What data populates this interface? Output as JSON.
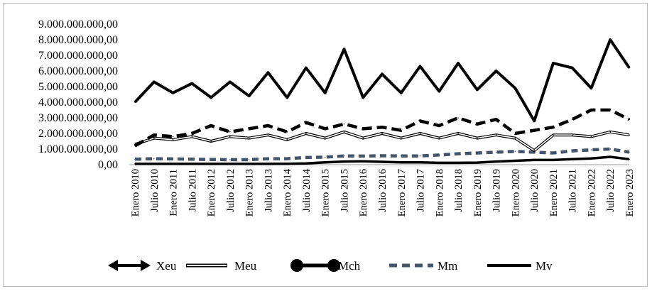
{
  "chart_data": {
    "type": "line",
    "title": "",
    "xlabel": "",
    "ylabel": "",
    "ylim": [
      0,
      9000000000
    ],
    "yticks": [
      "0,00",
      "1.000.000.000,00",
      "2.000.000.000,00",
      "3.000.000.000,00",
      "4.000.000.000,00",
      "5.000.000.000,00",
      "6.000.000.000,00",
      "7.000.000.000,00",
      "8.000.000.000,00",
      "9.000.000.000,00"
    ],
    "xticks": [
      "Enero 2010",
      "Julio 2010",
      "Enero 2011",
      "Julio 2011",
      "Enero 2012",
      "Julio 2012",
      "Enero 2013",
      "Julio 2013",
      "Enero 2014",
      "Julio 2014",
      "Enero 2015",
      "Julio 2015",
      "Enero 2016",
      "Julio 2016",
      "Enero 2017",
      "Julio 2017",
      "Enero 2018",
      "Julio 2018",
      "Enero 2019",
      "Julio 2019",
      "Enero 2020",
      "Julio 2020",
      "Enero 2021",
      "Julio 2021",
      "Enero 2022",
      "Julio 2022",
      "Enero 2023"
    ],
    "grid": false,
    "legend_position": "bottom",
    "series": [
      {
        "name": "Xeu",
        "color": "#000000",
        "style": "thick",
        "x": [
          "Enero 2010",
          "Julio 2010",
          "Enero 2011",
          "Julio 2011",
          "Enero 2012",
          "Julio 2012",
          "Enero 2013",
          "Julio 2013",
          "Enero 2014",
          "Julio 2014",
          "Enero 2015",
          "Julio 2015",
          "Enero 2016",
          "Julio 2016",
          "Enero 2017",
          "Julio 2017",
          "Enero 2018",
          "Julio 2018",
          "Enero 2019",
          "Julio 2019",
          "Enero 2020",
          "Julio 2020",
          "Enero 2021",
          "Julio 2021",
          "Enero 2022",
          "Julio 2022",
          "Enero 2023"
        ],
        "values": [
          4000000000,
          5300000000,
          4600000000,
          5200000000,
          4300000000,
          5300000000,
          4400000000,
          5900000000,
          4300000000,
          6200000000,
          4600000000,
          7400000000,
          4300000000,
          5800000000,
          4600000000,
          6300000000,
          4700000000,
          6500000000,
          4800000000,
          6000000000,
          4900000000,
          2800000000,
          6500000000,
          6200000000,
          4900000000,
          8000000000,
          6200000000
        ]
      },
      {
        "name": "Meu",
        "color": "#000000",
        "style": "double",
        "x": [
          "Enero 2010",
          "Julio 2010",
          "Enero 2011",
          "Julio 2011",
          "Enero 2012",
          "Julio 2012",
          "Enero 2013",
          "Julio 2013",
          "Enero 2014",
          "Julio 2014",
          "Enero 2015",
          "Julio 2015",
          "Enero 2016",
          "Julio 2016",
          "Enero 2017",
          "Julio 2017",
          "Enero 2018",
          "Julio 2018",
          "Enero 2019",
          "Julio 2019",
          "Enero 2020",
          "Julio 2020",
          "Enero 2021",
          "Julio 2021",
          "Enero 2022",
          "Julio 2022",
          "Enero 2023"
        ],
        "values": [
          1300000000,
          1700000000,
          1600000000,
          1800000000,
          1500000000,
          1800000000,
          1700000000,
          1900000000,
          1600000000,
          2000000000,
          1700000000,
          2100000000,
          1700000000,
          2000000000,
          1700000000,
          2000000000,
          1700000000,
          2000000000,
          1700000000,
          1900000000,
          1700000000,
          900000000,
          1900000000,
          1900000000,
          1800000000,
          2100000000,
          1900000000
        ]
      },
      {
        "name": "Mch",
        "color": "#000000",
        "style": "dashed-thick",
        "x": [
          "Enero 2010",
          "Julio 2010",
          "Enero 2011",
          "Julio 2011",
          "Enero 2012",
          "Julio 2012",
          "Enero 2013",
          "Julio 2013",
          "Enero 2014",
          "Julio 2014",
          "Enero 2015",
          "Julio 2015",
          "Enero 2016",
          "Julio 2016",
          "Enero 2017",
          "Julio 2017",
          "Enero 2018",
          "Julio 2018",
          "Enero 2019",
          "Julio 2019",
          "Enero 2020",
          "Julio 2020",
          "Enero 2021",
          "Julio 2021",
          "Enero 2022",
          "Julio 2022",
          "Enero 2023"
        ],
        "values": [
          1200000000,
          1900000000,
          1800000000,
          2000000000,
          2500000000,
          2100000000,
          2300000000,
          2500000000,
          2100000000,
          2700000000,
          2300000000,
          2600000000,
          2300000000,
          2400000000,
          2200000000,
          2800000000,
          2500000000,
          3000000000,
          2600000000,
          2900000000,
          2000000000,
          2200000000,
          2400000000,
          2900000000,
          3500000000,
          3500000000,
          2900000000
        ]
      },
      {
        "name": "Mm",
        "color": "#44546a",
        "style": "dashed",
        "x": [
          "Enero 2010",
          "Julio 2010",
          "Enero 2011",
          "Julio 2011",
          "Enero 2012",
          "Julio 2012",
          "Enero 2013",
          "Julio 2013",
          "Enero 2014",
          "Julio 2014",
          "Enero 2015",
          "Julio 2015",
          "Enero 2016",
          "Julio 2016",
          "Enero 2017",
          "Julio 2017",
          "Enero 2018",
          "Julio 2018",
          "Enero 2019",
          "Julio 2019",
          "Enero 2020",
          "Julio 2020",
          "Enero 2021",
          "Julio 2021",
          "Enero 2022",
          "Julio 2022",
          "Enero 2023"
        ],
        "values": [
          350000000,
          380000000,
          370000000,
          350000000,
          330000000,
          320000000,
          320000000,
          380000000,
          380000000,
          460000000,
          480000000,
          560000000,
          550000000,
          570000000,
          560000000,
          560000000,
          620000000,
          700000000,
          750000000,
          800000000,
          850000000,
          800000000,
          750000000,
          880000000,
          950000000,
          1000000000,
          800000000
        ]
      },
      {
        "name": "Mv",
        "color": "#000000",
        "style": "solid",
        "x": [
          "Enero 2010",
          "Julio 2010",
          "Enero 2011",
          "Julio 2011",
          "Enero 2012",
          "Julio 2012",
          "Enero 2013",
          "Julio 2013",
          "Enero 2014",
          "Julio 2014",
          "Enero 2015",
          "Julio 2015",
          "Enero 2016",
          "Julio 2016",
          "Enero 2017",
          "Julio 2017",
          "Enero 2018",
          "Julio 2018",
          "Enero 2019",
          "Julio 2019",
          "Enero 2020",
          "Julio 2020",
          "Enero 2021",
          "Julio 2021",
          "Enero 2022",
          "Julio 2022",
          "Enero 2023"
        ],
        "values": [
          50000000,
          50000000,
          50000000,
          50000000,
          50000000,
          50000000,
          50000000,
          50000000,
          60000000,
          80000000,
          150000000,
          200000000,
          220000000,
          180000000,
          150000000,
          150000000,
          120000000,
          120000000,
          130000000,
          200000000,
          250000000,
          300000000,
          300000000,
          350000000,
          400000000,
          500000000,
          350000000
        ]
      }
    ]
  }
}
